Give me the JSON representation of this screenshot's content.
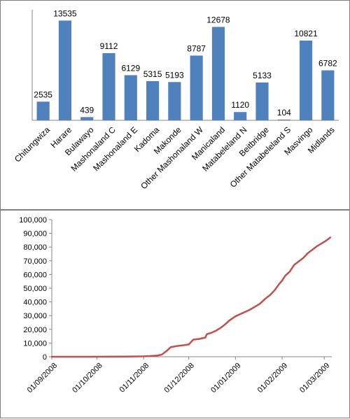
{
  "chart_data": [
    {
      "type": "bar",
      "categories": [
        "Chitungwiza",
        "Harare",
        "Bulawayo",
        "Mashonaland C",
        "Mashonaland E",
        "Kadoma",
        "Makonde",
        "Other Mashonaland W",
        "Manicaland",
        "Matabeleland N",
        "Beitbridge",
        "Other Matabeleland S",
        "Masvingo",
        "Midlands"
      ],
      "values": [
        2535,
        13535,
        439,
        9112,
        6129,
        5315,
        5193,
        8787,
        12678,
        1120,
        5133,
        104,
        10821,
        6782
      ],
      "data_labels": [
        "2535",
        "13535",
        "439",
        "9112",
        "6129",
        "5315",
        "5193",
        "8787",
        "12678",
        "1120",
        "5133",
        "104",
        "10821",
        "6782"
      ],
      "ylim": [
        0,
        15000
      ],
      "bar_color": "#4F81BD",
      "grid": false,
      "legend": "none"
    },
    {
      "type": "line",
      "x_axis": "date",
      "x_ticks": [
        "01/09/2008",
        "01/10/2008",
        "01/11/2008",
        "01/12/2008",
        "01/01/2009",
        "01/02/2009",
        "01/03/2009"
      ],
      "y_ticks": [
        "0",
        "10,000",
        "20,000",
        "30,000",
        "40,000",
        "50,000",
        "60,000",
        "70,000",
        "80,000",
        "90,000",
        "100,000"
      ],
      "ylim": [
        0,
        100000
      ],
      "xlim": [
        "2008-09-01",
        "2009-03-06"
      ],
      "line_color": "#C0504D",
      "grid": false,
      "legend": "none",
      "series": [
        {
          "points": [
            [
              "2008-09-01",
              0
            ],
            [
              "2008-09-20",
              0
            ],
            [
              "2008-10-05",
              50
            ],
            [
              "2008-10-20",
              150
            ],
            [
              "2008-11-01",
              300
            ],
            [
              "2008-11-05",
              500
            ],
            [
              "2008-11-10",
              900
            ],
            [
              "2008-11-13",
              1500
            ],
            [
              "2008-11-16",
              4000
            ],
            [
              "2008-11-19",
              7000
            ],
            [
              "2008-11-23",
              7800
            ],
            [
              "2008-11-28",
              8500
            ],
            [
              "2008-12-01",
              9000
            ],
            [
              "2008-12-04",
              12500
            ],
            [
              "2008-12-08",
              13000
            ],
            [
              "2008-12-12",
              14000
            ],
            [
              "2008-12-13",
              16500
            ],
            [
              "2008-12-16",
              17500
            ],
            [
              "2008-12-19",
              19000
            ],
            [
              "2008-12-22",
              21000
            ],
            [
              "2008-12-25",
              23500
            ],
            [
              "2008-12-28",
              26500
            ],
            [
              "2009-01-01",
              29500
            ],
            [
              "2009-01-06",
              32000
            ],
            [
              "2009-01-10",
              34000
            ],
            [
              "2009-01-14",
              36500
            ],
            [
              "2009-01-17",
              38500
            ],
            [
              "2009-01-21",
              42500
            ],
            [
              "2009-01-24",
              45000
            ],
            [
              "2009-01-27",
              48500
            ],
            [
              "2009-01-30",
              53000
            ],
            [
              "2009-02-01",
              55500
            ],
            [
              "2009-02-03",
              59000
            ],
            [
              "2009-02-06",
              62000
            ],
            [
              "2009-02-09",
              67000
            ],
            [
              "2009-02-12",
              69500
            ],
            [
              "2009-02-15",
              72000
            ],
            [
              "2009-02-18",
              75500
            ],
            [
              "2009-02-21",
              78000
            ],
            [
              "2009-02-24",
              80500
            ],
            [
              "2009-02-27",
              82500
            ],
            [
              "2009-03-02",
              84500
            ],
            [
              "2009-03-05",
              87000
            ]
          ]
        }
      ]
    }
  ]
}
